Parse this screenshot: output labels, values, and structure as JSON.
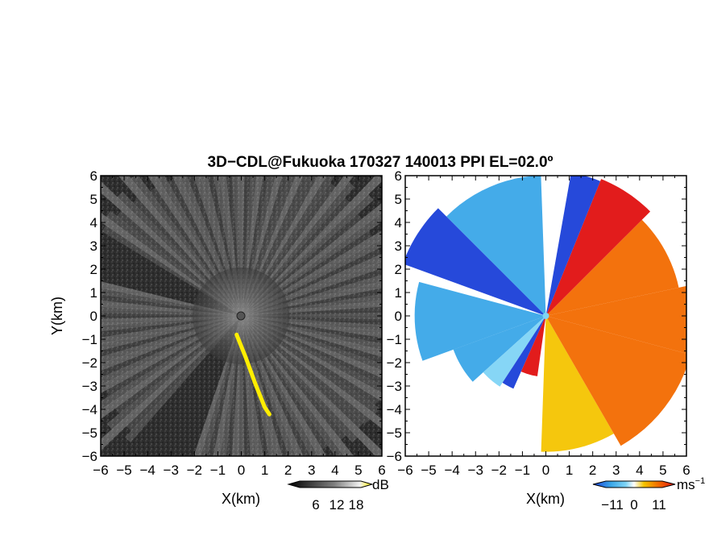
{
  "title": "3D−CDL@Fukuoka 170327 140013 PPI EL=02.0º",
  "colors": {
    "background": "#ffffff",
    "frame": "#000000",
    "reflectivity_base": "#303030",
    "reflectivity_streak": "#d0d0d0",
    "clutter": "#ffee00",
    "velocity_negative_far": "#1a3fd8",
    "velocity_negative": "#3aa7e8",
    "velocity_negative_light": "#7fd4f5",
    "velocity_positive": "#f4c400",
    "velocity_positive_strong": "#f26a00",
    "velocity_positive_max": "#e01010"
  },
  "chart_data": [
    {
      "type": "heatmap",
      "name": "reflectivity-ppi",
      "xlabel": "X(km)",
      "ylabel": "Y(km)",
      "xlim": [
        -6,
        6
      ],
      "ylim": [
        -6,
        6
      ],
      "x_ticks": [
        -6,
        -5,
        -4,
        -3,
        -2,
        -1,
        0,
        1,
        2,
        3,
        4,
        5,
        6
      ],
      "y_ticks": [
        -6,
        -5,
        -4,
        -3,
        -2,
        -1,
        0,
        1,
        2,
        3,
        4,
        5,
        6
      ],
      "colorbar": {
        "unit": "dB",
        "ticks": [
          6,
          12,
          18
        ],
        "cmap": "gray-to-yellow"
      },
      "features": {
        "clutter_path_km": [
          [
            -0.2,
            -0.8
          ],
          [
            0.2,
            -1.8
          ],
          [
            0.6,
            -2.9
          ],
          [
            1.0,
            -3.9
          ],
          [
            1.2,
            -4.2
          ]
        ],
        "dark_sectors_deg": [
          [
            150,
            165
          ],
          [
            230,
            250
          ]
        ]
      }
    },
    {
      "type": "heatmap",
      "name": "doppler-velocity-ppi",
      "xlabel": "X(km)",
      "ylabel": "",
      "xlim": [
        -6,
        6
      ],
      "ylim": [
        -6,
        6
      ],
      "x_ticks": [
        -6,
        -5,
        -4,
        -3,
        -2,
        -1,
        0,
        1,
        2,
        3,
        4,
        5,
        6
      ],
      "y_ticks": [
        -6,
        -5,
        -4,
        -3,
        -2,
        -1,
        0,
        1,
        2,
        3,
        4,
        5,
        6
      ],
      "colorbar": {
        "unit": "ms",
        "unit_exponent": "−1",
        "tick_labels": [
          "−11",
          "0",
          "11"
        ],
        "ticks": [
          -11,
          0,
          11
        ],
        "cmap": "blue-cyan-white-yellow-orange-red"
      },
      "sectors": [
        {
          "az_from_deg": 92,
          "az_to_deg": 135,
          "r_max_km": 6.0,
          "velocity_ms": -7
        },
        {
          "az_from_deg": 135,
          "az_to_deg": 160,
          "r_max_km": 6.5,
          "velocity_ms": -9
        },
        {
          "az_from_deg": 165,
          "az_to_deg": 200,
          "r_max_km": 5.6,
          "velocity_ms": -8
        },
        {
          "az_from_deg": 200,
          "az_to_deg": 222,
          "r_max_km": 4.2,
          "velocity_ms": -7
        },
        {
          "az_from_deg": 222,
          "az_to_deg": 237,
          "r_max_km": 3.6,
          "velocity_ms": -4
        },
        {
          "az_from_deg": 237,
          "az_to_deg": 246,
          "r_max_km": 3.4,
          "velocity_ms": -10
        },
        {
          "az_from_deg": 246,
          "az_to_deg": 262,
          "r_max_km": 2.6,
          "velocity_ms": 11
        },
        {
          "az_from_deg": 268,
          "az_to_deg": 300,
          "r_max_km": 5.8,
          "velocity_ms": 5
        },
        {
          "az_from_deg": 300,
          "az_to_deg": 345,
          "r_max_km": 6.4,
          "velocity_ms": 7
        },
        {
          "az_from_deg": 345,
          "az_to_deg": 372,
          "r_max_km": 6.4,
          "velocity_ms": 8
        },
        {
          "az_from_deg": 12,
          "az_to_deg": 45,
          "r_max_km": 5.8,
          "velocity_ms": 8
        },
        {
          "az_from_deg": 45,
          "az_to_deg": 68,
          "r_max_km": 6.3,
          "velocity_ms": 10
        },
        {
          "az_from_deg": 68,
          "az_to_deg": 80,
          "r_max_km": 6.2,
          "velocity_ms": -10
        }
      ]
    }
  ]
}
